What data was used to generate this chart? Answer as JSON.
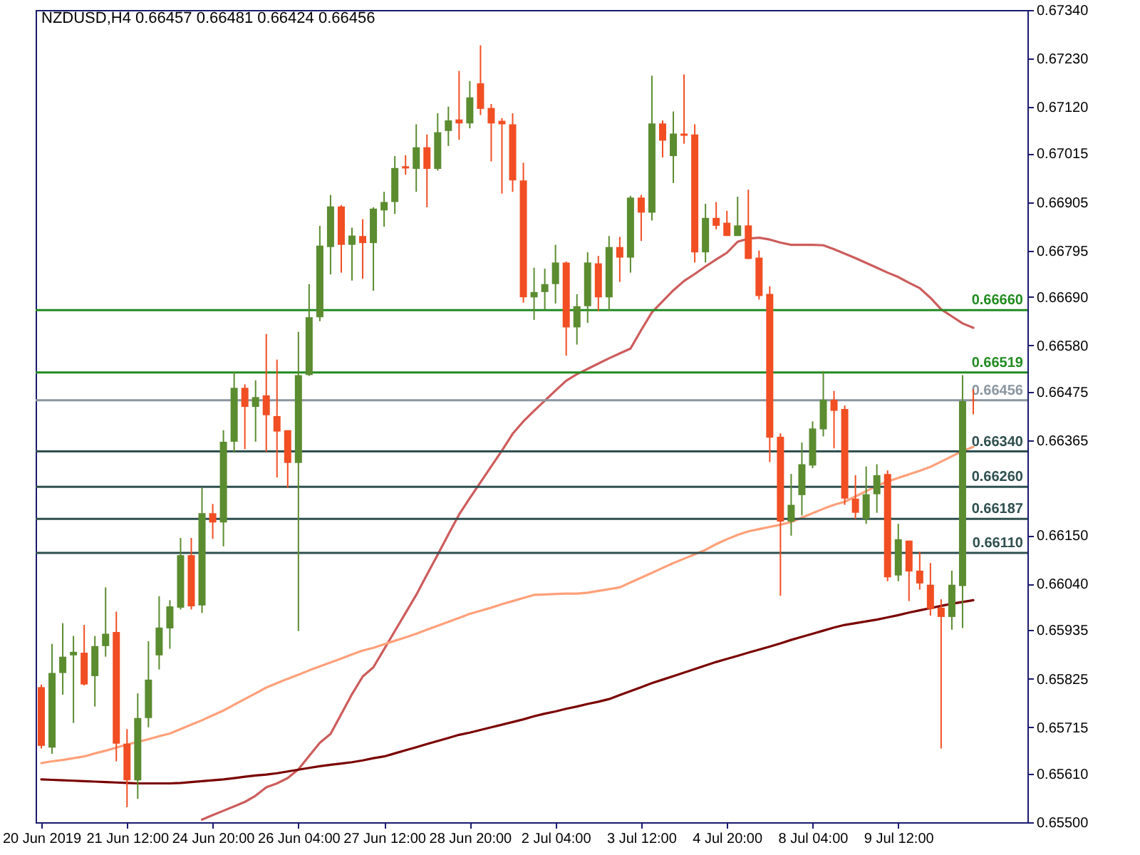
{
  "chart_data": {
    "type": "candlestick",
    "title": "NZDUSD,H4  0.66457 0.66481 0.66424 0.66456",
    "categories": [
      "20 Jun 2019",
      null,
      null,
      null,
      null,
      null,
      null,
      null,
      "21 Jun 12:00",
      null,
      null,
      null,
      null,
      null,
      null,
      null,
      "24 Jun 20:00",
      null,
      null,
      null,
      null,
      null,
      null,
      null,
      "26 Jun 04:00",
      null,
      null,
      null,
      null,
      null,
      null,
      null,
      "27 Jun 12:00",
      null,
      null,
      null,
      null,
      null,
      null,
      null,
      "28 Jun 20:00",
      null,
      null,
      null,
      null,
      null,
      null,
      null,
      "2 Jul 04:00",
      null,
      null,
      null,
      null,
      null,
      null,
      null,
      "3 Jul 12:00",
      null,
      null,
      null,
      null,
      null,
      null,
      null,
      "4 Jul 20:00",
      null,
      null,
      null,
      null,
      null,
      null,
      null,
      "8 Jul 04:00",
      null,
      null,
      null,
      null,
      null,
      null,
      null,
      "9 Jul 12:00",
      null,
      null,
      null,
      null,
      null,
      null,
      null
    ],
    "ylim": [
      0.655,
      0.6734
    ],
    "yticks": [
      {
        "value": 0.6734,
        "label": "0.67340"
      },
      {
        "value": 0.6723,
        "label": "0.67230"
      },
      {
        "value": 0.6712,
        "label": "0.67120"
      },
      {
        "value": 0.67015,
        "label": "0.67015"
      },
      {
        "value": 0.66905,
        "label": "0.66905"
      },
      {
        "value": 0.66795,
        "label": "0.66795"
      },
      {
        "value": 0.6669,
        "label": "0.66690"
      },
      {
        "value": 0.6658,
        "label": "0.66580"
      },
      {
        "value": 0.66475,
        "label": "0.66475"
      },
      {
        "value": 0.66365,
        "label": "0.66365"
      },
      {
        "value": 0.6615,
        "label": "0.66150"
      },
      {
        "value": 0.6604,
        "label": "0.66040"
      },
      {
        "value": 0.65935,
        "label": "0.65935"
      },
      {
        "value": 0.65825,
        "label": "0.65825"
      },
      {
        "value": 0.65715,
        "label": "0.65715"
      },
      {
        "value": 0.6561,
        "label": "0.65610"
      },
      {
        "value": 0.655,
        "label": "0.65500"
      }
    ],
    "ref_lines": [
      {
        "axis": "y",
        "value": 0.6666,
        "label": "0.66660",
        "color": "#228b22"
      },
      {
        "axis": "y",
        "value": 0.66519,
        "label": "0.66519",
        "color": "#228b22"
      },
      {
        "axis": "y",
        "value": 0.66456,
        "label": "0.66456",
        "color": "#8a96a0"
      },
      {
        "axis": "y",
        "value": 0.6634,
        "label": "0.66340",
        "color": "#2f4f4f"
      },
      {
        "axis": "y",
        "value": 0.6626,
        "label": "0.66260",
        "color": "#2f4f4f"
      },
      {
        "axis": "y",
        "value": 0.66187,
        "label": "0.66187",
        "color": "#2f4f4f"
      },
      {
        "axis": "y",
        "value": 0.6611,
        "label": "0.66110",
        "color": "#2f4f4f"
      }
    ],
    "series": [
      {
        "type": "line",
        "color": "#cd5c5c",
        "values": [
          null,
          null,
          null,
          null,
          null,
          null,
          null,
          null,
          null,
          null,
          null,
          null,
          null,
          null,
          null,
          0.65506,
          0.65516,
          0.65526,
          0.65536,
          0.65546,
          0.6556,
          0.65579,
          0.65588,
          0.656,
          0.6562,
          0.6565,
          0.6568,
          0.657,
          0.65745,
          0.6579,
          0.6583,
          0.65851,
          0.65892,
          0.65933,
          0.65974,
          0.66015,
          0.66061,
          0.66106,
          0.66152,
          0.66197,
          0.66234,
          0.6627,
          0.66306,
          0.66342,
          0.6638,
          0.66408,
          0.66432,
          0.66455,
          0.66478,
          0.665,
          0.66515,
          0.66527,
          0.66539,
          0.66551,
          0.66562,
          0.66573,
          0.66615,
          0.66655,
          0.6668,
          0.66705,
          0.66726,
          0.66742,
          0.66759,
          0.66775,
          0.6679,
          0.66815,
          0.66822,
          0.66824,
          0.6682,
          0.66813,
          0.66808,
          0.66808,
          0.66808,
          0.66807,
          0.66798,
          0.66788,
          0.66778,
          0.66767,
          0.66756,
          0.66745,
          0.66735,
          0.66722,
          0.6671,
          0.66688,
          0.66662,
          0.66646,
          0.6663,
          0.6662
        ]
      },
      {
        "type": "line",
        "color": "#ffa07a",
        "values": [
          0.65634,
          0.65638,
          0.65641,
          0.65645,
          0.65649,
          0.65656,
          0.65662,
          0.65669,
          0.65676,
          0.65682,
          0.65688,
          0.65695,
          0.65701,
          0.65711,
          0.65721,
          0.65731,
          0.65742,
          0.65753,
          0.65766,
          0.65779,
          0.65792,
          0.65805,
          0.65815,
          0.65825,
          0.65834,
          0.65844,
          0.65853,
          0.65862,
          0.65871,
          0.6588,
          0.65889,
          0.65895,
          0.65903,
          0.65911,
          0.65919,
          0.65927,
          0.65936,
          0.65945,
          0.65954,
          0.65963,
          0.65972,
          0.65979,
          0.65986,
          0.65994,
          0.66001,
          0.66008,
          0.66015,
          0.66016,
          0.66017,
          0.66018,
          0.66018,
          0.6602,
          0.66024,
          0.66028,
          0.66032,
          0.66043,
          0.66054,
          0.66065,
          0.66076,
          0.66087,
          0.66097,
          0.66107,
          0.66117,
          0.6613,
          0.66141,
          0.66151,
          0.66159,
          0.66164,
          0.66169,
          0.66174,
          0.6618,
          0.6619,
          0.662,
          0.6621,
          0.66219,
          0.66226,
          0.66238,
          0.6625,
          0.66262,
          0.66272,
          0.6628,
          0.66288,
          0.66296,
          0.66305,
          0.66317,
          0.66329,
          0.66341,
          0.6635
        ]
      },
      {
        "type": "line",
        "color": "#7a0000",
        "values": [
          0.65597,
          0.65596,
          0.65595,
          0.65594,
          0.65593,
          0.65592,
          0.65591,
          0.6559,
          0.65589,
          0.65588,
          0.65588,
          0.65588,
          0.65588,
          0.65589,
          0.65591,
          0.65593,
          0.65595,
          0.65597,
          0.656,
          0.65603,
          0.65606,
          0.65608,
          0.65611,
          0.65615,
          0.65619,
          0.65623,
          0.65627,
          0.6563,
          0.65633,
          0.65636,
          0.6564,
          0.65645,
          0.65649,
          0.65656,
          0.65663,
          0.6567,
          0.65677,
          0.65684,
          0.65691,
          0.65698,
          0.65703,
          0.65709,
          0.65715,
          0.65721,
          0.65727,
          0.65733,
          0.6574,
          0.65746,
          0.65751,
          0.65757,
          0.65762,
          0.65768,
          0.65773,
          0.65779,
          0.65788,
          0.65797,
          0.65806,
          0.65815,
          0.65823,
          0.65831,
          0.65839,
          0.65847,
          0.65855,
          0.65863,
          0.6587,
          0.65877,
          0.65884,
          0.65891,
          0.65898,
          0.65905,
          0.65913,
          0.6592,
          0.65927,
          0.65934,
          0.65941,
          0.65947,
          0.65951,
          0.65955,
          0.65959,
          0.65964,
          0.65969,
          0.65975,
          0.6598,
          0.65985,
          0.6599,
          0.65995,
          0.65999,
          0.66003
        ]
      },
      {
        "type": "candlestick",
        "colors": [
          "#f14e23",
          "#5b8c30",
          "#5b8c30",
          "#5b8c30",
          "#f14e23",
          "#5b8c30",
          "#5b8c30",
          "#f14e23",
          "#f14e23",
          "#5b8c30",
          "#5b8c30",
          "#5b8c30",
          "#5b8c30",
          "#5b8c30",
          "#f14e23",
          "#5b8c30",
          "#f14e23",
          "#5b8c30",
          "#5b8c30",
          "#f14e23",
          "#5b8c30",
          "#f14e23",
          "#f14e23",
          "#f14e23",
          "#5b8c30",
          "#5b8c30",
          "#5b8c30",
          "#5b8c30",
          "#f14e23",
          "#5b8c30",
          "#f14e23",
          "#5b8c30",
          "#5b8c30",
          "#5b8c30",
          "#f14e23",
          "#5b8c30",
          "#f14e23",
          "#5b8c30",
          "#5b8c30",
          "#f14e23",
          "#5b8c30",
          "#f14e23",
          "#f14e23",
          "#f14e23",
          "#f14e23",
          "#f14e23",
          "#5b8c30",
          "#5b8c30",
          "#5b8c30",
          "#f14e23",
          "#5b8c30",
          "#5b8c30",
          "#f14e23",
          "#5b8c30",
          "#f14e23",
          "#5b8c30",
          "#f14e23",
          "#5b8c30",
          "#f14e23",
          "#5b8c30",
          "#f14e23",
          "#f14e23",
          "#5b8c30",
          "#f14e23",
          "#f14e23",
          "#5b8c30",
          "#f14e23",
          "#f14e23",
          "#f14e23",
          "#f14e23",
          "#5b8c30",
          "#5b8c30",
          "#5b8c30",
          "#5b8c30",
          "#f14e23",
          "#f14e23",
          "#f14e23",
          "#5b8c30",
          "#5b8c30",
          "#f14e23",
          "#5b8c30",
          "#f14e23",
          "#f14e23",
          "#f14e23",
          "#f14e23",
          "#5b8c30",
          "#5b8c30",
          "#f14e23"
        ],
        "ohlc": [
          [
            0.65806,
            0.65812,
            0.65667,
            0.65673
          ],
          [
            0.65669,
            0.65904,
            0.65655,
            0.65838
          ],
          [
            0.65838,
            0.65951,
            0.65789,
            0.65875
          ],
          [
            0.65878,
            0.65922,
            0.65725,
            0.65886
          ],
          [
            0.65884,
            0.65947,
            0.6581,
            0.65812
          ],
          [
            0.65831,
            0.65922,
            0.65762,
            0.65899
          ],
          [
            0.65899,
            0.66032,
            0.65875,
            0.65927
          ],
          [
            0.65931,
            0.65977,
            0.65638,
            0.65678
          ],
          [
            0.65678,
            0.65711,
            0.65534,
            0.65595
          ],
          [
            0.65595,
            0.65792,
            0.65553,
            0.65736
          ],
          [
            0.65736,
            0.6591,
            0.65715,
            0.65823
          ],
          [
            0.65878,
            0.66012,
            0.65846,
            0.65941
          ],
          [
            0.65939,
            0.66003,
            0.65893,
            0.65989
          ],
          [
            0.65986,
            0.66144,
            0.65982,
            0.66105
          ],
          [
            0.66105,
            0.66144,
            0.65982,
            0.65989
          ],
          [
            0.65991,
            0.66258,
            0.65974,
            0.662
          ],
          [
            0.662,
            0.66221,
            0.66142,
            0.66179
          ],
          [
            0.66179,
            0.66388,
            0.66125,
            0.66362
          ],
          [
            0.66362,
            0.66521,
            0.66337,
            0.66484
          ],
          [
            0.66484,
            0.66492,
            0.66345,
            0.66441
          ],
          [
            0.66441,
            0.66501,
            0.66362,
            0.66463
          ],
          [
            0.66467,
            0.66606,
            0.66339,
            0.66422
          ],
          [
            0.6642,
            0.66548,
            0.66281,
            0.66385
          ],
          [
            0.66388,
            0.66388,
            0.66258,
            0.66314
          ],
          [
            0.66314,
            0.66611,
            0.65933,
            0.66513
          ],
          [
            0.66513,
            0.66719,
            0.66511,
            0.66644
          ],
          [
            0.66644,
            0.66851,
            0.66635,
            0.66806
          ],
          [
            0.66803,
            0.66921,
            0.66741,
            0.66895
          ],
          [
            0.66895,
            0.66898,
            0.66745,
            0.66808
          ],
          [
            0.66808,
            0.66847,
            0.66727,
            0.66829
          ],
          [
            0.66828,
            0.66866,
            0.66731,
            0.66812
          ],
          [
            0.66812,
            0.66893,
            0.66704,
            0.6689
          ],
          [
            0.66886,
            0.66928,
            0.66849,
            0.66905
          ],
          [
            0.66905,
            0.67009,
            0.66878,
            0.66982
          ],
          [
            0.66986,
            0.67011,
            0.66967,
            0.66981
          ],
          [
            0.6698,
            0.67081,
            0.66928,
            0.67029
          ],
          [
            0.67029,
            0.67058,
            0.66893,
            0.6698
          ],
          [
            0.6698,
            0.67106,
            0.66976,
            0.67063
          ],
          [
            0.67066,
            0.67121,
            0.67032,
            0.6709
          ],
          [
            0.67092,
            0.67202,
            0.67046,
            0.67083
          ],
          [
            0.67083,
            0.67179,
            0.67072,
            0.67142
          ],
          [
            0.67174,
            0.6726,
            0.67102,
            0.67116
          ],
          [
            0.67118,
            0.67127,
            0.66997,
            0.67083
          ],
          [
            0.67089,
            0.67095,
            0.66924,
            0.67081
          ],
          [
            0.67081,
            0.67106,
            0.66928,
            0.66954
          ],
          [
            0.66954,
            0.66994,
            0.66677,
            0.66689
          ],
          [
            0.66689,
            0.66756,
            0.66638,
            0.66701
          ],
          [
            0.66701,
            0.66754,
            0.66661,
            0.66719
          ],
          [
            0.66719,
            0.66808,
            0.66675,
            0.66768
          ],
          [
            0.66768,
            0.6677,
            0.66557,
            0.66621
          ],
          [
            0.66621,
            0.66696,
            0.66582,
            0.66669
          ],
          [
            0.66669,
            0.66791,
            0.66631,
            0.66768
          ],
          [
            0.66766,
            0.66783,
            0.66658,
            0.66689
          ],
          [
            0.66689,
            0.66828,
            0.66658,
            0.66803
          ],
          [
            0.66803,
            0.66826,
            0.66724,
            0.66779
          ],
          [
            0.66779,
            0.66919,
            0.66745,
            0.66915
          ],
          [
            0.66915,
            0.66921,
            0.66817,
            0.66881
          ],
          [
            0.66881,
            0.67191,
            0.66863,
            0.67083
          ],
          [
            0.67083,
            0.6709,
            0.67006,
            0.67044
          ],
          [
            0.67009,
            0.6711,
            0.66948,
            0.6706
          ],
          [
            0.6706,
            0.67194,
            0.67037,
            0.67055
          ],
          [
            0.67058,
            0.67081,
            0.66768,
            0.66791
          ],
          [
            0.66791,
            0.66901,
            0.66768,
            0.66869
          ],
          [
            0.66869,
            0.66905,
            0.66843,
            0.66851
          ],
          [
            0.66858,
            0.66885,
            0.66828,
            0.66828
          ],
          [
            0.66828,
            0.66917,
            0.66828,
            0.66852
          ],
          [
            0.66852,
            0.66933,
            0.66776,
            0.66776
          ],
          [
            0.66779,
            0.66795,
            0.66684,
            0.66692
          ],
          [
            0.66697,
            0.66714,
            0.66316,
            0.66371
          ],
          [
            0.66373,
            0.66381,
            0.66013,
            0.66181
          ],
          [
            0.66181,
            0.66289,
            0.66149,
            0.66219
          ],
          [
            0.66241,
            0.6636,
            0.66195,
            0.66311
          ],
          [
            0.66308,
            0.66408,
            0.66302,
            0.66392
          ],
          [
            0.6639,
            0.66522,
            0.66374,
            0.66457
          ],
          [
            0.66457,
            0.66477,
            0.66347,
            0.66432
          ],
          [
            0.66436,
            0.66444,
            0.66219,
            0.66233
          ],
          [
            0.66233,
            0.66286,
            0.66187,
            0.66201
          ],
          [
            0.66187,
            0.66306,
            0.66176,
            0.66243
          ],
          [
            0.66243,
            0.66311,
            0.66201,
            0.66286
          ],
          [
            0.66289,
            0.66297,
            0.66046,
            0.66055
          ],
          [
            0.66059,
            0.66176,
            0.66046,
            0.66141
          ],
          [
            0.66138,
            0.66138,
            0.66001,
            0.66068
          ],
          [
            0.6607,
            0.66113,
            0.66027,
            0.66041
          ],
          [
            0.66038,
            0.66087,
            0.65968,
            0.65983
          ],
          [
            0.65986,
            0.66005,
            0.65667,
            0.65965
          ],
          [
            0.65965,
            0.6607,
            0.65936,
            0.66038
          ],
          [
            0.66035,
            0.66513,
            0.6594,
            0.66454
          ],
          [
            0.66457,
            0.66481,
            0.66424,
            0.66456
          ]
        ]
      }
    ]
  }
}
